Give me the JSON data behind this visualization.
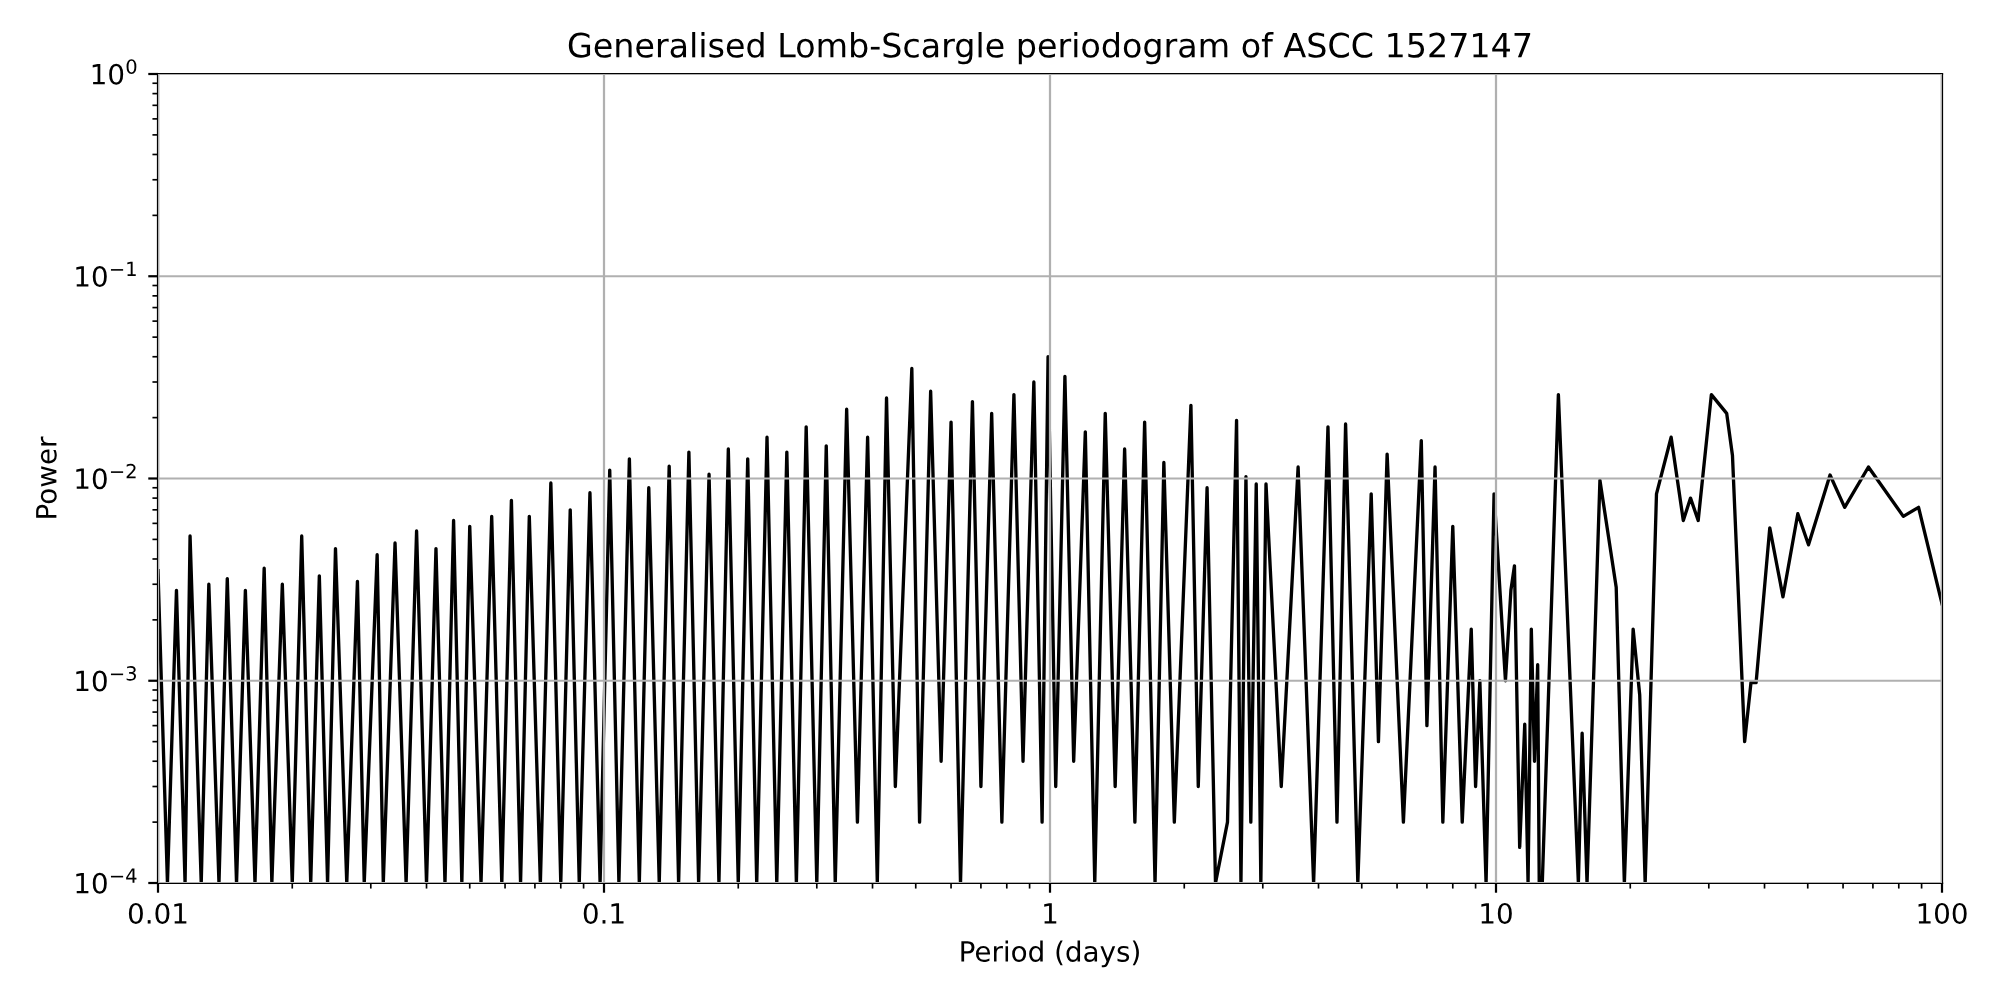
{
  "chart_data": {
    "type": "line",
    "title": "Generalised Lomb-Scargle periodogram of ASCC 1527147",
    "xlabel": "Period (days)",
    "ylabel": "Power",
    "log": "xy",
    "grid": true,
    "line_style": "solid",
    "marker": "none",
    "xlim": [
      0.01,
      100
    ],
    "ylim": [
      0.0001,
      1
    ],
    "xticks": [
      {
        "value": 0.01,
        "label": "0.01"
      },
      {
        "value": 0.1,
        "label": "0.1"
      },
      {
        "value": 1,
        "label": "1"
      },
      {
        "value": 10,
        "label": "10"
      },
      {
        "value": 100,
        "label": "100"
      }
    ],
    "yticks": [
      {
        "value": 0.0001,
        "label": "10$^{−4}$"
      },
      {
        "value": 0.001,
        "label": "10$^{−3}$"
      },
      {
        "value": 0.01,
        "label": "10$^{−2}$"
      },
      {
        "value": 0.1,
        "label": "10$^{−1}$"
      },
      {
        "value": 1,
        "label": "10$^{0}$"
      }
    ],
    "series": [
      {
        "color": "#000000",
        "x": [
          0.01,
          0.0105,
          0.011,
          0.0115,
          0.0118,
          0.0125,
          0.013,
          0.0137,
          0.0143,
          0.015,
          0.0157,
          0.0165,
          0.0173,
          0.018,
          0.019,
          0.02,
          0.021,
          0.022,
          0.023,
          0.024,
          0.025,
          0.0265,
          0.028,
          0.029,
          0.031,
          0.032,
          0.034,
          0.036,
          0.038,
          0.04,
          0.042,
          0.044,
          0.046,
          0.048,
          0.05,
          0.053,
          0.056,
          0.059,
          0.062,
          0.065,
          0.068,
          0.072,
          0.076,
          0.08,
          0.084,
          0.088,
          0.093,
          0.098,
          0.103,
          0.108,
          0.114,
          0.12,
          0.126,
          0.133,
          0.14,
          0.147,
          0.155,
          0.163,
          0.172,
          0.181,
          0.19,
          0.2,
          0.21,
          0.22,
          0.232,
          0.244,
          0.257,
          0.27,
          0.284,
          0.3,
          0.315,
          0.33,
          0.35,
          0.37,
          0.39,
          0.41,
          0.43,
          0.45,
          0.49,
          0.51,
          0.54,
          0.57,
          0.6,
          0.63,
          0.67,
          0.7,
          0.74,
          0.78,
          0.83,
          0.87,
          0.92,
          0.96,
          0.99,
          1.03,
          1.08,
          1.13,
          1.2,
          1.26,
          1.33,
          1.4,
          1.47,
          1.55,
          1.63,
          1.72,
          1.8,
          1.9,
          2.07,
          2.15,
          2.25,
          2.35,
          2.5,
          2.62,
          2.68,
          2.75,
          2.82,
          2.9,
          2.97,
          3.05,
          3.3,
          3.6,
          3.9,
          4.2,
          4.4,
          4.6,
          4.9,
          5.25,
          5.45,
          5.7,
          6.2,
          6.8,
          7.0,
          7.3,
          7.6,
          8.0,
          8.4,
          8.8,
          9.0,
          9.2,
          9.5,
          9.9,
          10.5,
          10.8,
          11.0,
          11.3,
          11.6,
          11.8,
          12.0,
          12.2,
          12.4,
          12.5,
          12.7,
          13.8,
          15.3,
          15.6,
          16.0,
          17.1,
          18.6,
          19.4,
          20.3,
          21.0,
          21.6,
          22.9,
          24.7,
          26.3,
          27.3,
          28.4,
          30.4,
          32.9,
          33.9,
          36.1,
          37.3,
          38.3,
          41.1,
          44.0,
          47.5,
          50.2,
          56.1,
          60.5,
          68.4,
          81.9,
          88.6,
          100
        ],
        "values": [
          0.0035,
          0.0001,
          0.0028,
          0.0001,
          0.0052,
          0.0001,
          0.003,
          0.0001,
          0.0032,
          0.0001,
          0.0028,
          0.0001,
          0.0036,
          0.0001,
          0.003,
          0.0001,
          0.0052,
          0.0001,
          0.0033,
          0.0001,
          0.0045,
          0.0001,
          0.0031,
          0.0001,
          0.0042,
          0.0001,
          0.0048,
          0.0001,
          0.0055,
          0.0001,
          0.0045,
          0.0001,
          0.0062,
          0.0001,
          0.0058,
          0.0001,
          0.0065,
          0.0001,
          0.0078,
          0.0001,
          0.0065,
          0.0001,
          0.0095,
          0.0001,
          0.007,
          0.0001,
          0.0085,
          0.0001,
          0.011,
          0.0001,
          0.0125,
          0.0001,
          0.009,
          0.0001,
          0.0115,
          0.0001,
          0.0135,
          0.0001,
          0.0105,
          0.0001,
          0.014,
          0.0001,
          0.0125,
          0.0001,
          0.016,
          0.0001,
          0.0135,
          0.0001,
          0.018,
          0.0001,
          0.0145,
          0.0001,
          0.022,
          0.0002,
          0.016,
          0.0001,
          0.025,
          0.0003,
          0.035,
          0.0002,
          0.027,
          0.0004,
          0.019,
          0.0001,
          0.024,
          0.0003,
          0.021,
          0.0002,
          0.026,
          0.0004,
          0.03,
          0.0002,
          0.04,
          0.0003,
          0.032,
          0.0004,
          0.017,
          0.0001,
          0.021,
          0.0003,
          0.014,
          0.0002,
          0.019,
          0.0001,
          0.012,
          0.0002,
          0.023,
          0.0003,
          0.009,
          0.0001,
          0.0002,
          0.0194,
          0.0001,
          0.0102,
          0.0002,
          0.0094,
          0.0001,
          0.0094,
          0.0003,
          0.0114,
          0.0001,
          0.018,
          0.0002,
          0.0186,
          0.0001,
          0.0084,
          0.0005,
          0.0132,
          0.0002,
          0.0154,
          0.0006,
          0.0114,
          0.0002,
          0.0058,
          0.0002,
          0.0018,
          0.0003,
          0.001,
          0.0001,
          0.0084,
          0.001,
          0.0028,
          0.0037,
          0.00015,
          0.00061,
          0.0001,
          0.0018,
          0.0004,
          0.0012,
          0.0001,
          0.0001,
          0.026,
          0.0001,
          0.00055,
          0.0001,
          0.0098,
          0.0029,
          0.0001,
          0.0018,
          0.00085,
          0.0001,
          0.0084,
          0.016,
          0.0062,
          0.008,
          0.0062,
          0.026,
          0.021,
          0.013,
          0.0005,
          0.00098,
          0.00098,
          0.0057,
          0.0026,
          0.0067,
          0.0047,
          0.0104,
          0.0072,
          0.0114,
          0.0065,
          0.0072,
          0.0024
        ]
      }
    ]
  }
}
